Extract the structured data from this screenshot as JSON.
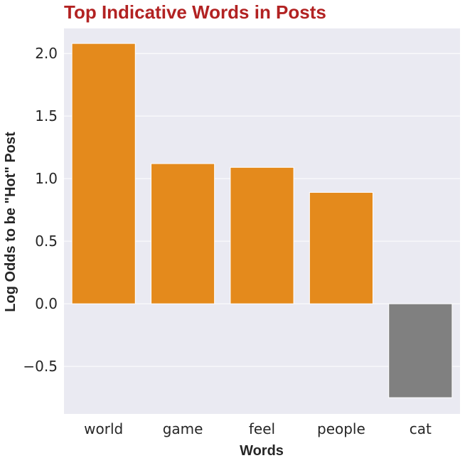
{
  "chart_data": {
    "type": "bar",
    "title": "Top Indicative Words in Posts",
    "xlabel": "Words",
    "ylabel": "Log Odds to be \"Hot\" Post",
    "categories": [
      "world",
      "game",
      "feel",
      "people",
      "cat"
    ],
    "values": [
      2.08,
      1.12,
      1.09,
      0.89,
      -0.75
    ],
    "ylim": [
      -0.88,
      2.2
    ],
    "yticks": [
      -0.5,
      0.0,
      0.5,
      1.0,
      1.5,
      2.0
    ],
    "ytick_labels": [
      "−0.5",
      "0.0",
      "0.5",
      "1.0",
      "1.5",
      "2.0"
    ],
    "grid": true,
    "colors": {
      "positive": "#e48a1c",
      "negative": "#808080",
      "background": "#eaeaf2",
      "grid": "#ffffff",
      "title": "#b22222"
    }
  }
}
